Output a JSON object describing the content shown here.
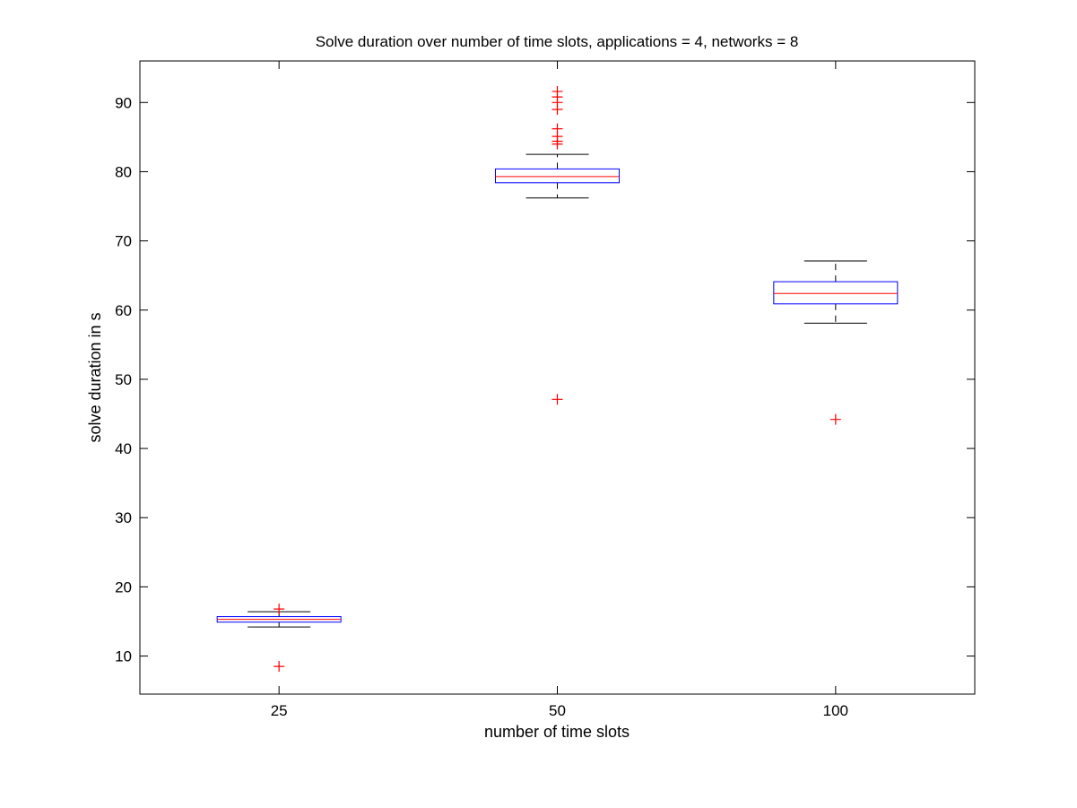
{
  "chart_data": {
    "type": "box",
    "title": "Solve duration over number of time slots, applications = 4, networks = 8",
    "xlabel": "number of time slots",
    "ylabel": "solve duration in s",
    "categories": [
      "25",
      "50",
      "100"
    ],
    "ylim": [
      4.5,
      96
    ],
    "yticks": [
      "10",
      "20",
      "30",
      "40",
      "50",
      "60",
      "70",
      "80",
      "90"
    ],
    "grid": false,
    "colors": {
      "box": "#0000ff",
      "median": "#ff0000",
      "whisker": "#000000",
      "outlier": "#ff0000"
    },
    "boxes": [
      {
        "category": "25",
        "whisker_low": 14.2,
        "q1": 14.9,
        "median": 15.3,
        "q3": 15.7,
        "whisker_high": 16.4,
        "outliers": [
          8.5,
          16.8
        ]
      },
      {
        "category": "50",
        "whisker_low": 76.2,
        "q1": 78.4,
        "median": 79.3,
        "q3": 80.4,
        "whisker_high": 82.5,
        "outliers": [
          47.1,
          84.0,
          84.4,
          85.1,
          86.2,
          89.0,
          90.0,
          90.8,
          91.6
        ]
      },
      {
        "category": "100",
        "whisker_low": 58.1,
        "q1": 60.9,
        "median": 62.4,
        "q3": 64.1,
        "whisker_high": 67.1,
        "outliers": [
          44.2
        ]
      }
    ]
  }
}
